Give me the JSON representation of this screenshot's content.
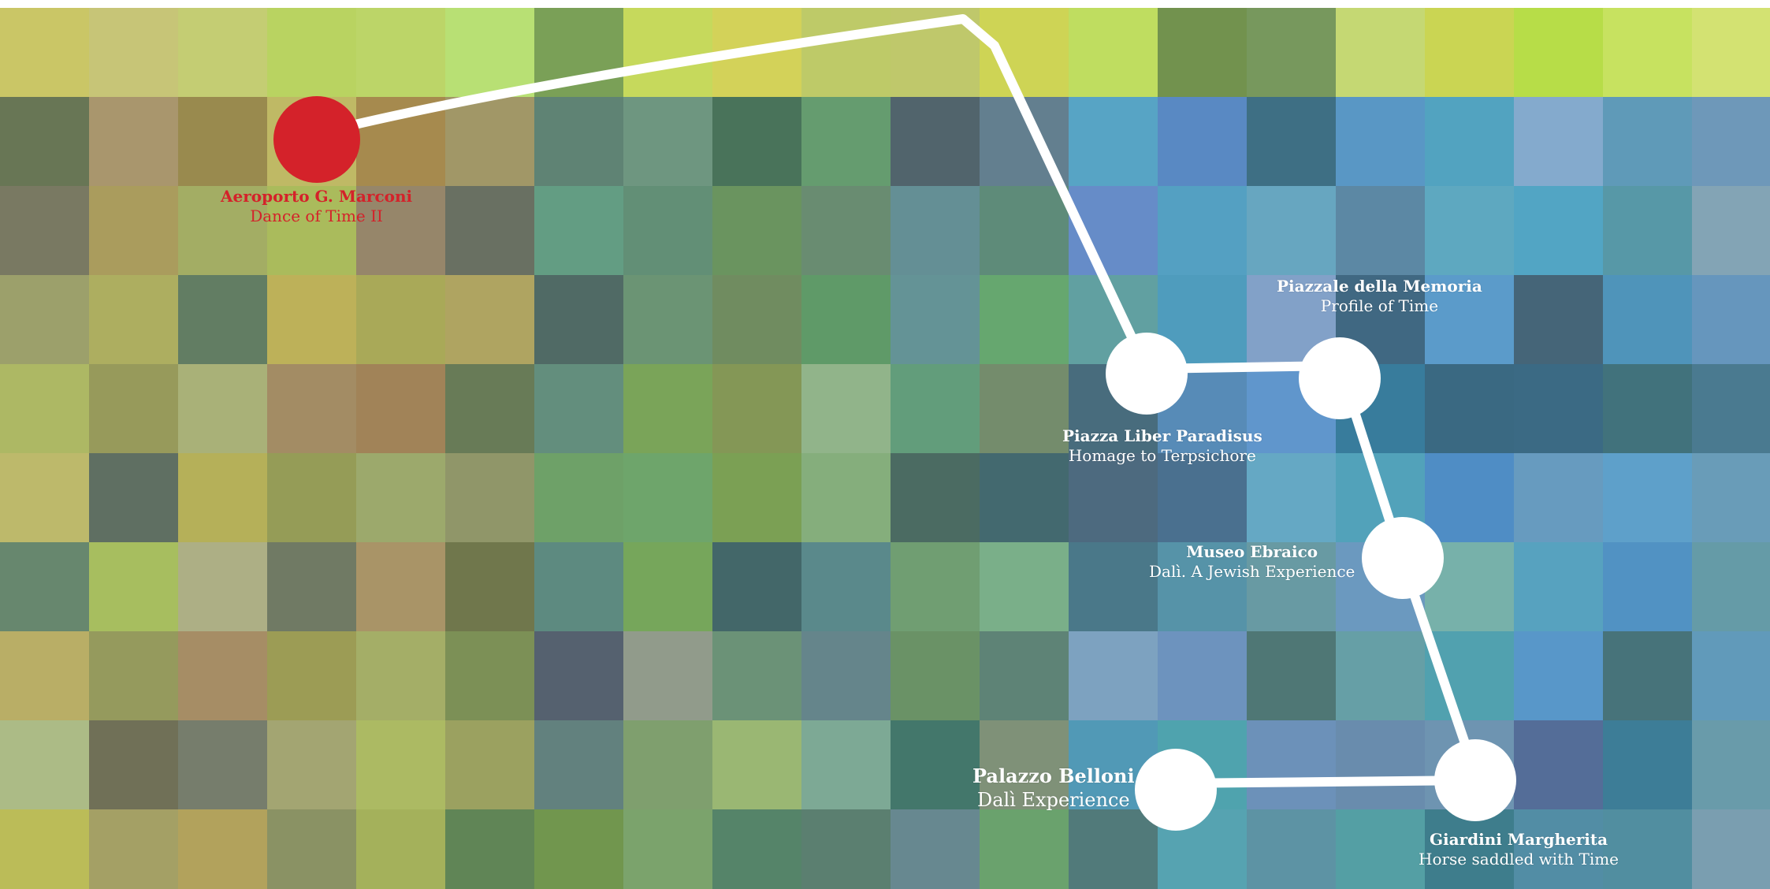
{
  "colors": {
    "route": "#ffffff",
    "start_marker": "#d4222a",
    "stop_marker": "#ffffff",
    "label_start": "#d4222a",
    "label_stop": "#ffffff"
  },
  "stops": [
    {
      "id": "aeroporto",
      "name": "Aeroporto G. Marconi",
      "work": "Dance of  Time II"
    },
    {
      "id": "piazza-liber",
      "name": "Piazza Liber Paradisus",
      "work": "Homage to Terpsichore"
    },
    {
      "id": "piazzale-memoria",
      "name": "Piazzale della Memoria",
      "work": "Profile of  Time"
    },
    {
      "id": "museo-ebraico",
      "name": "Museo Ebraico",
      "work": "Dalì. A Jewish Experience"
    },
    {
      "id": "giardini-margherita",
      "name": "Giardini Margherita",
      "work": "Horse saddled with Time"
    },
    {
      "id": "palazzo-belloni",
      "name": "Palazzo Belloni",
      "work": "Dalì Experience"
    }
  ]
}
